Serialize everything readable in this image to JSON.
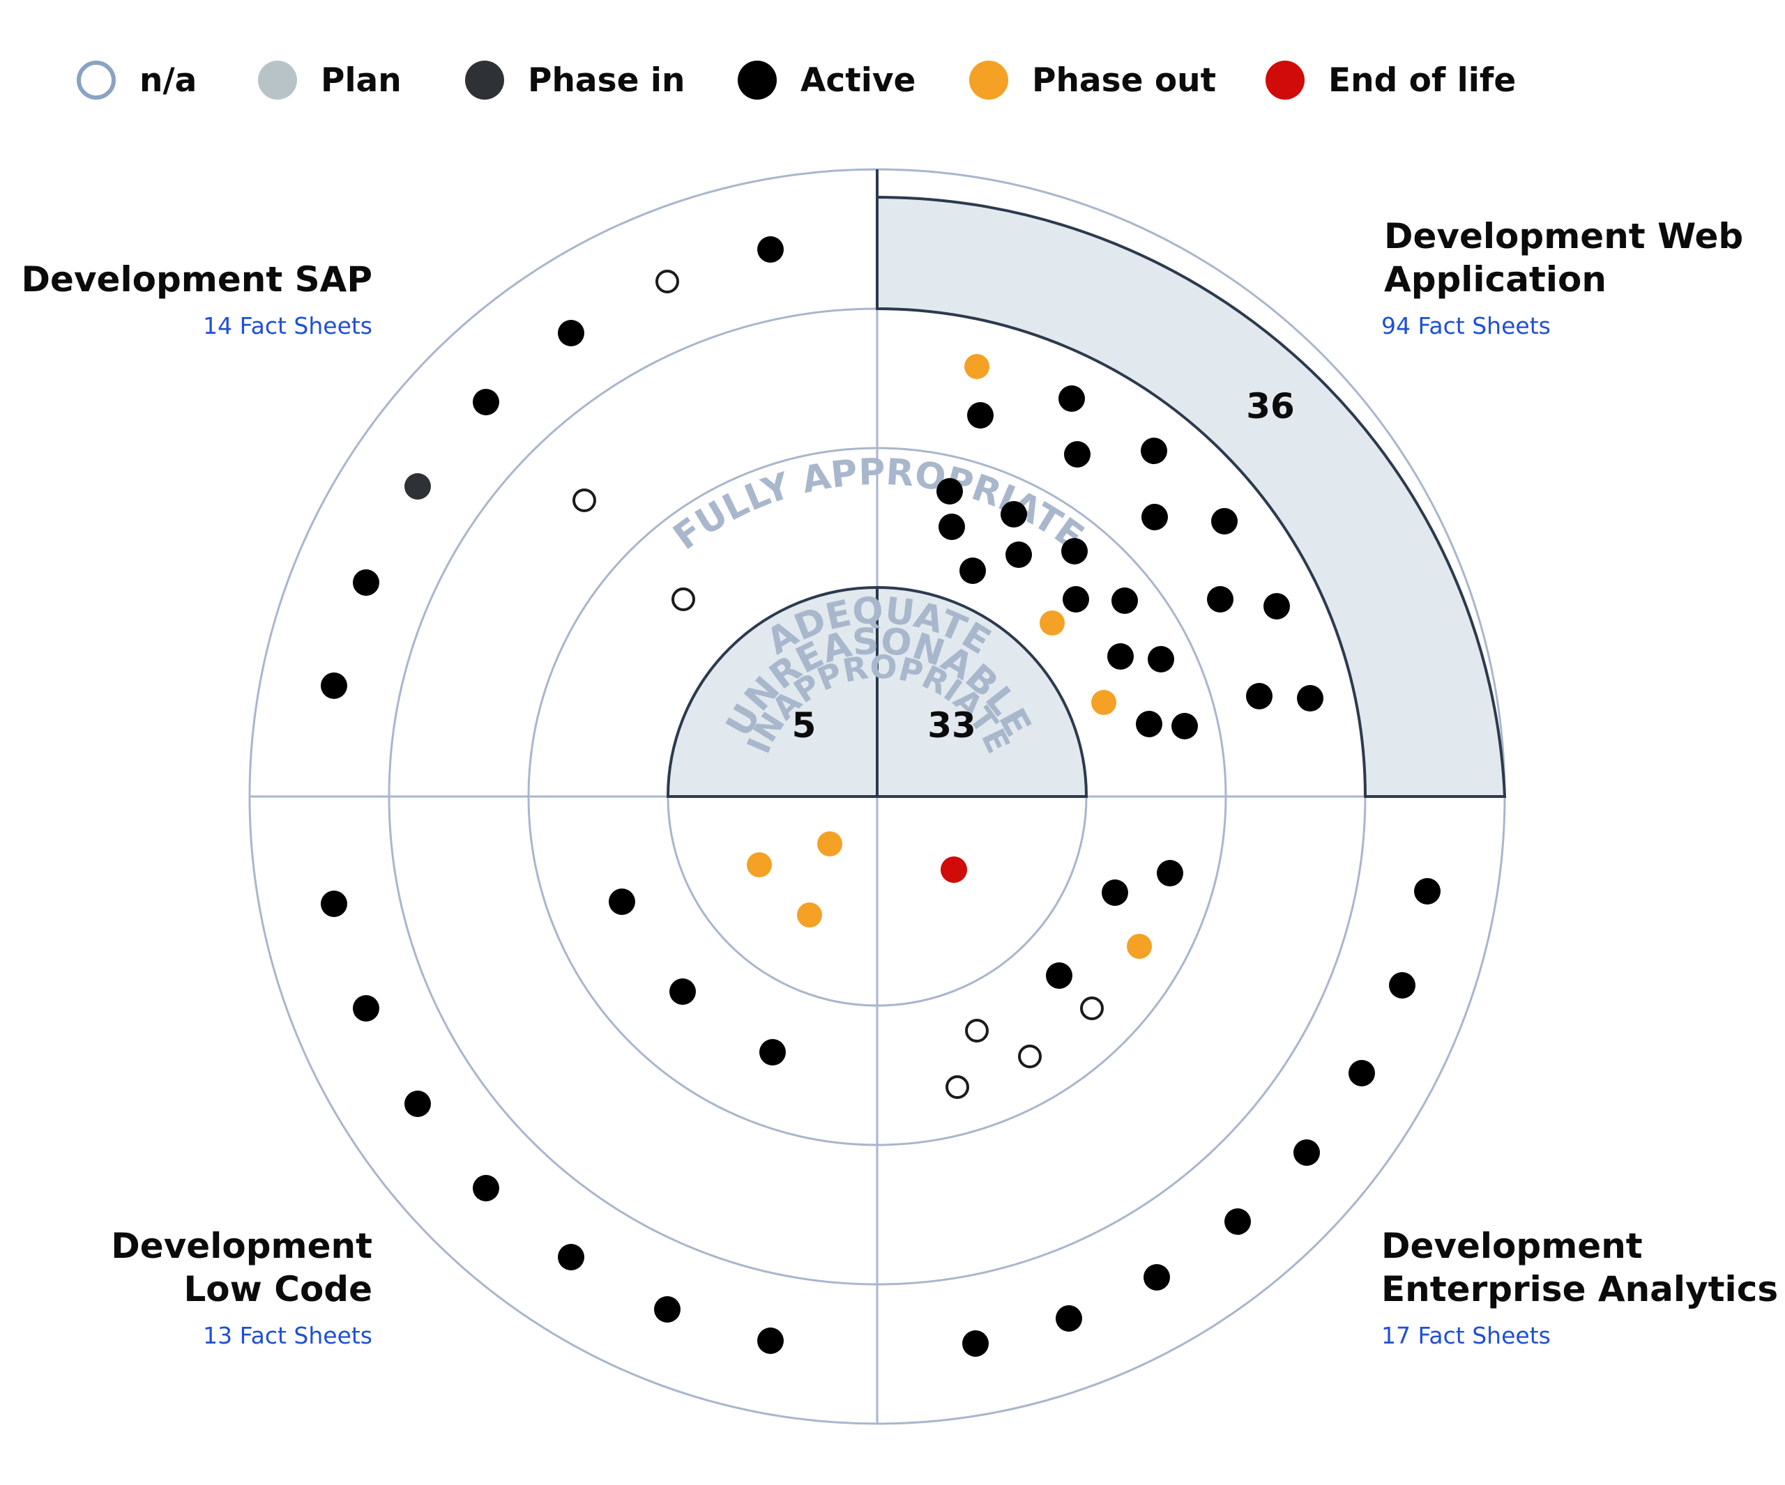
{
  "legend": [
    {
      "key": "na",
      "label": "n/a",
      "color": "#ffffff",
      "border": "#8aa3c2"
    },
    {
      "key": "plan",
      "label": "Plan",
      "color": "#b7c3c7"
    },
    {
      "key": "phase_in",
      "label": "Phase in",
      "color": "#2e3236"
    },
    {
      "key": "active",
      "label": "Active",
      "color": "#000000"
    },
    {
      "key": "phase_out",
      "label": "Phase out",
      "color": "#f4a126"
    },
    {
      "key": "end_of_life",
      "label": "End of life",
      "color": "#d10a0a"
    }
  ],
  "rings": {
    "fully_appropriate": "FULLY APPROPRIATE",
    "adequate": "ADEQUATE",
    "unreasonable": "UNREASONABLE",
    "inappropriate": "INAPPROPRIATE"
  },
  "quadrants": {
    "top_left": {
      "title_lines": [
        "Development SAP"
      ],
      "subtitle": "14 Fact Sheets"
    },
    "top_right": {
      "title_lines": [
        "Development Web",
        "Application"
      ],
      "subtitle": "94 Fact Sheets"
    },
    "bottom_left": {
      "title_lines": [
        "Development",
        "Low Code"
      ],
      "subtitle": "13 Fact Sheets"
    },
    "bottom_right": {
      "title_lines": [
        "Development",
        "Enterprise Analytics"
      ],
      "subtitle": "17 Fact Sheets"
    }
  },
  "counts": {
    "top_left_inappropriate": "5",
    "top_right_inappropriate": "33",
    "top_right_fully_appropriate": "36"
  },
  "colors": {
    "ring_stroke": "#a9b6cc",
    "highlight_fill": "#e1e9ee",
    "highlight_stroke": "#2c3a4e",
    "ring_label": "#a8b7cc",
    "subtitle": "#1e4fd6"
  },
  "points": [
    {
      "quadrant": "top_left",
      "ring": "fully_appropriate",
      "status": "active"
    },
    {
      "quadrant": "top_left",
      "ring": "fully_appropriate",
      "status": "na"
    },
    {
      "quadrant": "top_left",
      "ring": "fully_appropriate",
      "status": "active"
    },
    {
      "quadrant": "top_left",
      "ring": "fully_appropriate",
      "status": "active"
    },
    {
      "quadrant": "top_left",
      "ring": "fully_appropriate",
      "status": "phase_in"
    },
    {
      "quadrant": "top_left",
      "ring": "fully_appropriate",
      "status": "active"
    },
    {
      "quadrant": "top_left",
      "ring": "fully_appropriate",
      "status": "active"
    },
    {
      "quadrant": "top_left",
      "ring": "adequate",
      "status": "na"
    },
    {
      "quadrant": "top_left",
      "ring": "unreasonable",
      "status": "na"
    },
    {
      "quadrant": "top_right",
      "ring": "adequate",
      "status": "phase_out"
    },
    {
      "quadrant": "top_right",
      "ring": "adequate",
      "status": "active"
    },
    {
      "quadrant": "top_right",
      "ring": "adequate",
      "status": "active"
    },
    {
      "quadrant": "top_right",
      "ring": "adequate",
      "status": "active"
    },
    {
      "quadrant": "top_right",
      "ring": "adequate",
      "status": "active"
    },
    {
      "quadrant": "top_right",
      "ring": "adequate",
      "status": "active"
    },
    {
      "quadrant": "top_right",
      "ring": "adequate",
      "status": "active"
    },
    {
      "quadrant": "top_right",
      "ring": "adequate",
      "status": "active"
    },
    {
      "quadrant": "top_right",
      "ring": "adequate",
      "status": "active"
    },
    {
      "quadrant": "top_right",
      "ring": "adequate",
      "status": "active"
    },
    {
      "quadrant": "top_right",
      "ring": "adequate",
      "status": "active"
    },
    {
      "quadrant": "top_right",
      "ring": "unreasonable",
      "status": "active"
    },
    {
      "quadrant": "top_right",
      "ring": "unreasonable",
      "status": "active"
    },
    {
      "quadrant": "top_right",
      "ring": "unreasonable",
      "status": "active"
    },
    {
      "quadrant": "top_right",
      "ring": "unreasonable",
      "status": "active"
    },
    {
      "quadrant": "top_right",
      "ring": "unreasonable",
      "status": "active"
    },
    {
      "quadrant": "top_right",
      "ring": "unreasonable",
      "status": "active"
    },
    {
      "quadrant": "top_right",
      "ring": "unreasonable",
      "status": "active"
    },
    {
      "quadrant": "top_right",
      "ring": "unreasonable",
      "status": "active"
    },
    {
      "quadrant": "top_right",
      "ring": "unreasonable",
      "status": "phase_out"
    },
    {
      "quadrant": "top_right",
      "ring": "unreasonable",
      "status": "active"
    },
    {
      "quadrant": "top_right",
      "ring": "unreasonable",
      "status": "active"
    },
    {
      "quadrant": "top_right",
      "ring": "unreasonable",
      "status": "phase_out"
    },
    {
      "quadrant": "top_right",
      "ring": "unreasonable",
      "status": "active"
    },
    {
      "quadrant": "top_right",
      "ring": "unreasonable",
      "status": "active"
    },
    {
      "quadrant": "bottom_left",
      "ring": "inappropriate",
      "status": "phase_out"
    },
    {
      "quadrant": "bottom_left",
      "ring": "inappropriate",
      "status": "phase_out"
    },
    {
      "quadrant": "bottom_left",
      "ring": "inappropriate",
      "status": "phase_out"
    },
    {
      "quadrant": "bottom_left",
      "ring": "unreasonable",
      "status": "active"
    },
    {
      "quadrant": "bottom_left",
      "ring": "unreasonable",
      "status": "active"
    },
    {
      "quadrant": "bottom_left",
      "ring": "unreasonable",
      "status": "active"
    },
    {
      "quadrant": "bottom_left",
      "ring": "fully_appropriate",
      "status": "active"
    },
    {
      "quadrant": "bottom_left",
      "ring": "fully_appropriate",
      "status": "active"
    },
    {
      "quadrant": "bottom_left",
      "ring": "fully_appropriate",
      "status": "active"
    },
    {
      "quadrant": "bottom_left",
      "ring": "fully_appropriate",
      "status": "active"
    },
    {
      "quadrant": "bottom_left",
      "ring": "fully_appropriate",
      "status": "active"
    },
    {
      "quadrant": "bottom_left",
      "ring": "fully_appropriate",
      "status": "active"
    },
    {
      "quadrant": "bottom_left",
      "ring": "fully_appropriate",
      "status": "active"
    },
    {
      "quadrant": "bottom_right",
      "ring": "inappropriate",
      "status": "end_of_life"
    },
    {
      "quadrant": "bottom_right",
      "ring": "unreasonable",
      "status": "active"
    },
    {
      "quadrant": "bottom_right",
      "ring": "unreasonable",
      "status": "active"
    },
    {
      "quadrant": "bottom_right",
      "ring": "unreasonable",
      "status": "phase_out"
    },
    {
      "quadrant": "bottom_right",
      "ring": "unreasonable",
      "status": "active"
    },
    {
      "quadrant": "bottom_right",
      "ring": "unreasonable",
      "status": "na"
    },
    {
      "quadrant": "bottom_right",
      "ring": "unreasonable",
      "status": "na"
    },
    {
      "quadrant": "bottom_right",
      "ring": "unreasonable",
      "status": "na"
    },
    {
      "quadrant": "bottom_right",
      "ring": "unreasonable",
      "status": "na"
    },
    {
      "quadrant": "bottom_right",
      "ring": "fully_appropriate",
      "status": "active"
    },
    {
      "quadrant": "bottom_right",
      "ring": "fully_appropriate",
      "status": "active"
    },
    {
      "quadrant": "bottom_right",
      "ring": "fully_appropriate",
      "status": "active"
    },
    {
      "quadrant": "bottom_right",
      "ring": "fully_appropriate",
      "status": "active"
    },
    {
      "quadrant": "bottom_right",
      "ring": "fully_appropriate",
      "status": "active"
    },
    {
      "quadrant": "bottom_right",
      "ring": "fully_appropriate",
      "status": "active"
    },
    {
      "quadrant": "bottom_right",
      "ring": "fully_appropriate",
      "status": "active"
    },
    {
      "quadrant": "bottom_right",
      "ring": "fully_appropriate",
      "status": "active"
    }
  ]
}
